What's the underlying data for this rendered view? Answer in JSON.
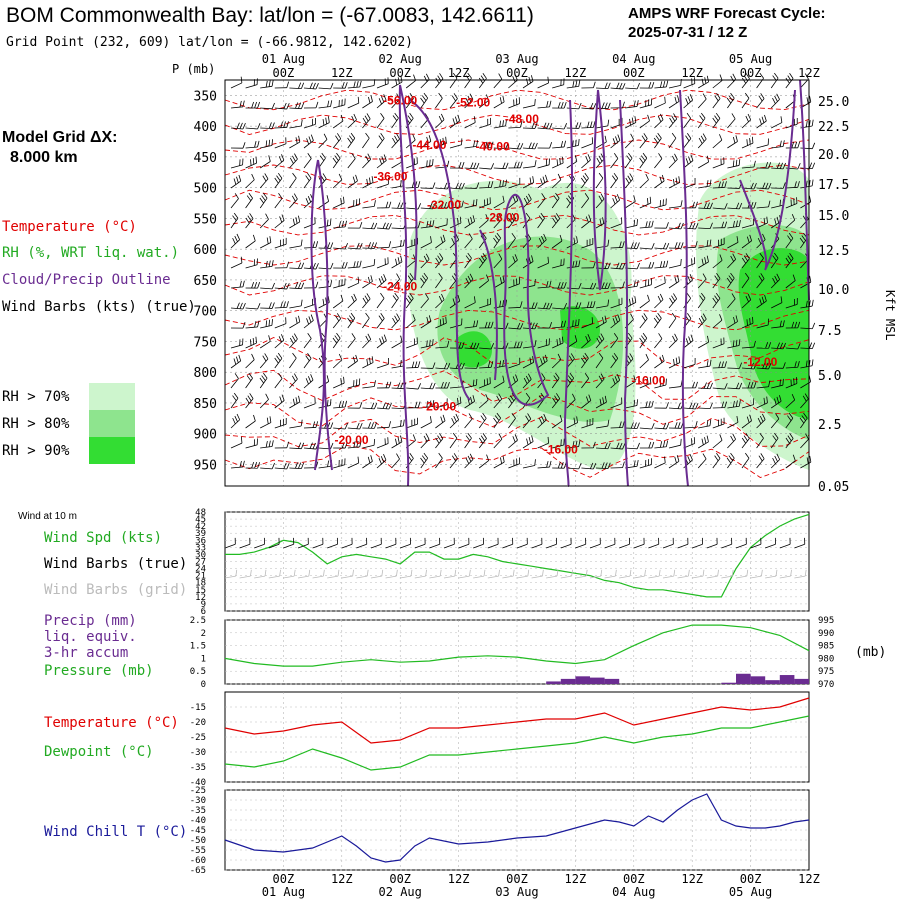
{
  "header": {
    "title": "BOM Commonwealth Bay:  lat/lon = (-67.0083, 142.6611)",
    "cycle_line1": "AMPS WRF Forecast Cycle:",
    "cycle_line2": "2025-07-31 / 12  Z",
    "grid_point": "Grid Point (232, 609) lat/lon = (-66.9812, 142.6202)"
  },
  "top_axis": {
    "p_label": "P (mb)",
    "days": [
      "01 Aug",
      "02 Aug",
      "03 Aug",
      "04 Aug",
      "05 Aug"
    ],
    "hours": [
      "00Z",
      "12Z",
      "00Z",
      "12Z",
      "00Z",
      "12Z",
      "00Z",
      "12Z",
      "00Z",
      "12Z"
    ]
  },
  "left_panel": {
    "model_grid_label": "Model Grid ΔX:",
    "model_grid_value": "8.000 km",
    "legend_temperature": "Temperature (°C)",
    "legend_rh": "RH (%, WRT liq. wat.)",
    "legend_cloud": "Cloud/Precip Outline",
    "legend_wind": "Wind Barbs (kts) (true)",
    "rh_70": "RH > 70%",
    "rh_80": "RH > 80%",
    "rh_90": "RH > 90%"
  },
  "colors": {
    "temperature": "#e00000",
    "rh": "#22aa22",
    "cloud": "#6a2c91",
    "rh70": "#cdf5cd",
    "rh80": "#8ee48e",
    "rh90": "#33dd33",
    "wind_chill": "#1a1a9a",
    "pressure": "#22bb22",
    "precip": "#6a2c91"
  },
  "panel_labels": {
    "wind_at_10m": "Wind at 10 m",
    "wind_spd": "Wind Spd (kts)",
    "wind_barbs_true": "Wind Barbs (true)",
    "wind_barbs_grid": "Wind Barbs (grid)",
    "precip1": "Precip (mm)",
    "precip2": "liq. equiv.",
    "precip3": "3-hr accum",
    "pressure": "Pressure (mb)",
    "pressure_unit": "(mb)",
    "temperature": "Temperature (°C)",
    "dewpoint": "Dewpoint (°C)",
    "wind_chill": "Wind Chill T (°C)",
    "kft_msl": "Kft MSL"
  },
  "chart_data": [
    {
      "type": "heatmap",
      "name": "cross-section",
      "time_hours": [
        0,
        120
      ],
      "pressure_levels": [
        350,
        400,
        450,
        500,
        550,
        600,
        650,
        700,
        750,
        800,
        850,
        900,
        950
      ],
      "height_labels_kft": [
        "25.0",
        "22.5",
        "20.0",
        "17.5",
        "15.0",
        "12.5",
        "10.0",
        "7.5",
        "5.0",
        "2.5",
        "0.05"
      ],
      "temperature_contour_labels": [
        {
          "t": 36,
          "p": 365,
          "label": "-56.00"
        },
        {
          "t": 51,
          "p": 368,
          "label": "-52.00"
        },
        {
          "t": 61,
          "p": 395,
          "label": "-48.00"
        },
        {
          "t": 42,
          "p": 437,
          "label": "-44.00"
        },
        {
          "t": 55,
          "p": 440,
          "label": "-40.00"
        },
        {
          "t": 34,
          "p": 488,
          "label": "-36.00"
        },
        {
          "t": 45,
          "p": 535,
          "label": "-32.00"
        },
        {
          "t": 57,
          "p": 555,
          "label": "-28.00"
        },
        {
          "t": 36,
          "p": 667,
          "label": "-24.00"
        },
        {
          "t": 44,
          "p": 862,
          "label": "-20.00"
        },
        {
          "t": 26,
          "p": 917,
          "label": "-20.00"
        },
        {
          "t": 69,
          "p": 932,
          "label": "-16.00"
        },
        {
          "t": 87,
          "p": 820,
          "label": "-16.00"
        },
        {
          "t": 110,
          "p": 790,
          "label": "-12.00"
        }
      ]
    },
    {
      "type": "line",
      "name": "wind-speed-10m",
      "title": "Wind Spd (kts)",
      "ylim": [
        6,
        48
      ],
      "y_ticks": [
        48,
        45,
        42,
        39,
        36,
        33,
        30,
        27,
        24,
        21,
        18,
        15,
        12,
        9,
        6
      ],
      "x": [
        0,
        3,
        6,
        9,
        12,
        15,
        18,
        21,
        24,
        27,
        30,
        33,
        36,
        39,
        42,
        45,
        48,
        51,
        54,
        57,
        60,
        63,
        66,
        69,
        72,
        75,
        78,
        81,
        84,
        87,
        90,
        93,
        96,
        99,
        102,
        105,
        108,
        111,
        114,
        117,
        120
      ],
      "values": [
        30,
        30,
        31,
        33,
        36,
        35,
        31,
        26,
        29,
        30,
        29,
        28,
        26,
        31,
        31,
        28,
        28,
        30,
        29,
        27,
        26,
        25,
        24,
        23,
        22,
        21,
        19,
        18,
        16,
        15,
        15,
        14,
        13,
        12,
        12,
        24,
        33,
        38,
        42,
        45,
        47
      ]
    },
    {
      "type": "line",
      "name": "surface-pressure",
      "title": "Pressure (mb)",
      "ylim": [
        970,
        995
      ],
      "y_ticks": [
        995,
        990,
        985,
        980,
        975,
        970
      ],
      "x": [
        0,
        6,
        12,
        18,
        24,
        30,
        36,
        42,
        48,
        54,
        60,
        66,
        72,
        78,
        84,
        90,
        96,
        102,
        108,
        114,
        120
      ],
      "values": [
        980,
        978,
        977,
        977,
        978.5,
        979.5,
        978.5,
        979,
        980.5,
        981,
        980.5,
        979,
        978,
        979.5,
        985,
        990,
        993,
        993,
        992,
        989,
        983
      ]
    },
    {
      "type": "bar",
      "name": "precip-3hr",
      "title": "Precip (mm)",
      "ylim": [
        0,
        2.5
      ],
      "y_ticks": [
        2.5,
        2.0,
        1.5,
        1.0,
        0.5,
        0.0
      ],
      "x": [
        66,
        69,
        72,
        75,
        78,
        102,
        105,
        108,
        111,
        114,
        117
      ],
      "values": [
        0.1,
        0.2,
        0.3,
        0.25,
        0.2,
        0.05,
        0.4,
        0.3,
        0.15,
        0.35,
        0.2
      ]
    },
    {
      "type": "line",
      "name": "temperature-dewpoint",
      "ylim": [
        -40,
        -10
      ],
      "y_ticks": [
        -15,
        -20,
        -25,
        -30,
        -35,
        -40
      ],
      "x": [
        0,
        6,
        12,
        18,
        24,
        30,
        36,
        42,
        48,
        54,
        60,
        66,
        72,
        78,
        84,
        90,
        96,
        102,
        108,
        114,
        120
      ],
      "series": [
        {
          "name": "Temperature (°C)",
          "values": [
            -22,
            -24,
            -23,
            -21,
            -20,
            -27,
            -26,
            -22,
            -22,
            -21,
            -20,
            -19,
            -19,
            -17,
            -21,
            -19,
            -17,
            -15,
            -16,
            -15,
            -12
          ]
        },
        {
          "name": "Dewpoint (°C)",
          "values": [
            -34,
            -35,
            -33,
            -29,
            -32,
            -36,
            -35,
            -31,
            -31,
            -30,
            -29,
            -28,
            -27,
            -25,
            -27,
            -25,
            -24,
            -22,
            -22,
            -20,
            -18
          ]
        }
      ]
    },
    {
      "type": "line",
      "name": "wind-chill",
      "title": "Wind Chill T (°C)",
      "ylim": [
        -65,
        -25
      ],
      "y_ticks": [
        -25,
        -30,
        -35,
        -40,
        -45,
        -50,
        -55,
        -60,
        -65
      ],
      "x": [
        0,
        6,
        12,
        18,
        24,
        27,
        30,
        33,
        36,
        39,
        42,
        48,
        54,
        60,
        66,
        72,
        78,
        81,
        84,
        87,
        90,
        93,
        96,
        99,
        102,
        105,
        108,
        111,
        114,
        117,
        120
      ],
      "values": [
        -50,
        -55,
        -56,
        -54,
        -48,
        -53,
        -59,
        -61,
        -60,
        -53,
        -49,
        -52,
        -51,
        -49,
        -48,
        -44,
        -40,
        -41,
        -43,
        -38,
        -41,
        -35,
        -30,
        -27,
        -40,
        -43,
        -44,
        -44,
        -43,
        -41,
        -40
      ]
    }
  ],
  "bottom_axis": {
    "hours": [
      "00Z",
      "12Z",
      "00Z",
      "12Z",
      "00Z",
      "12Z",
      "00Z",
      "12Z",
      "00Z",
      "12Z"
    ],
    "days": [
      "01 Aug",
      "02 Aug",
      "03 Aug",
      "04 Aug",
      "05 Aug"
    ]
  }
}
